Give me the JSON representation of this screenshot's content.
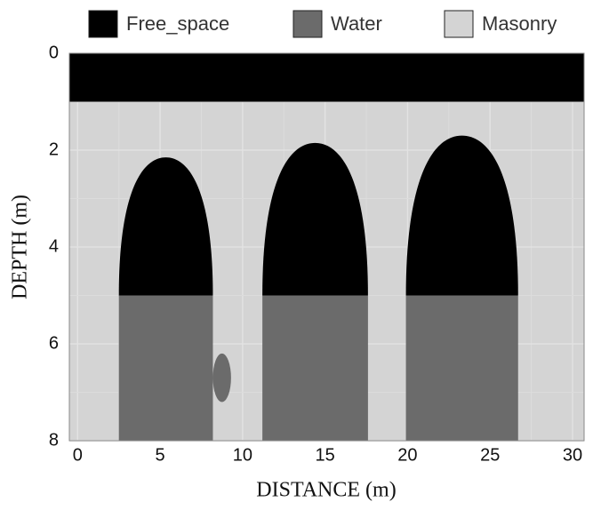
{
  "chart_data": {
    "type": "regions",
    "x_label": "DISTANCE (m)",
    "y_label": "DEPTH (m)",
    "xlim": [
      -0.5,
      30.7
    ],
    "ylim": [
      0,
      8
    ],
    "y_inverted": true,
    "xticks": [
      0,
      5,
      10,
      15,
      20,
      25,
      30
    ],
    "yticks": [
      0,
      2,
      4,
      6,
      8
    ],
    "grid": true,
    "series": [
      {
        "name": "Masonry",
        "color": "#d4d4d4",
        "rects": [
          [
            -0.5,
            30.7,
            0,
            8
          ]
        ]
      },
      {
        "name": "Free_space",
        "color": "#000000",
        "rects": [
          [
            -0.5,
            30.7,
            0,
            1
          ]
        ],
        "arches": [
          [
            2.5,
            8.2,
            2.15,
            5
          ],
          [
            11.2,
            17.6,
            1.85,
            5
          ],
          [
            19.9,
            26.7,
            1.7,
            5
          ]
        ]
      },
      {
        "name": "Water",
        "color": "#6b6b6b",
        "rects": [
          [
            2.5,
            8.2,
            5,
            8
          ],
          [
            11.2,
            17.6,
            5,
            8
          ],
          [
            19.9,
            26.7,
            5,
            8
          ]
        ],
        "ellipses": [
          [
            8.75,
            6.7,
            0.55,
            0.5
          ]
        ]
      }
    ],
    "legend_order": [
      1,
      2,
      0
    ]
  }
}
